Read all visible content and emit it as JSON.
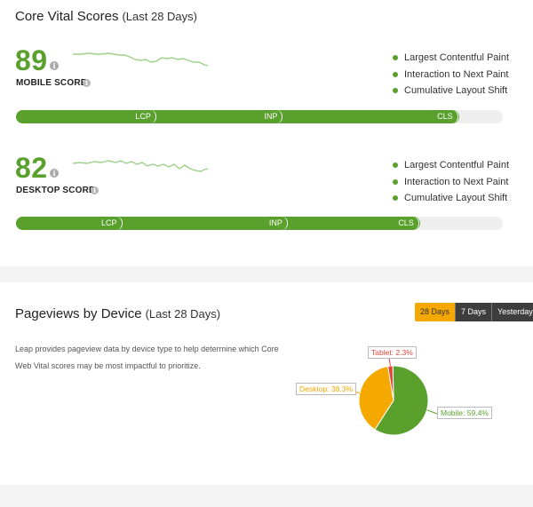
{
  "vitals": {
    "title": "Core Vital Scores",
    "subtitle": "(Last 28 Days)",
    "info_glyph": "i",
    "mobile": {
      "score": "89",
      "label": "MOBILE SCORE",
      "bar": {
        "segments": [
          {
            "label": "LCP",
            "fraction": 0.29
          },
          {
            "label": "INP",
            "fraction": 0.55
          },
          {
            "label": "CLS",
            "fraction": 0.91
          }
        ]
      }
    },
    "desktop": {
      "score": "82",
      "label": "DESKTOP SCORE",
      "bar": {
        "segments": [
          {
            "label": "LCP",
            "fraction": 0.22
          },
          {
            "label": "INP",
            "fraction": 0.56
          },
          {
            "label": "CLS",
            "fraction": 0.83
          }
        ]
      }
    },
    "legend": [
      "Largest Contentful Paint",
      "Interaction to Next Paint",
      "Cumulative Layout Shift"
    ]
  },
  "pageviews": {
    "title": "Pageviews by Device",
    "subtitle": "(Last 28 Days)",
    "tabs": [
      {
        "label": "28 Days",
        "active": true
      },
      {
        "label": "7 Days",
        "active": false
      },
      {
        "label": "Yesterday",
        "active": false
      }
    ],
    "description": "Leap provides pageview data by device type to help determine which Core Web Vital scores may be most impactful to prioritize."
  },
  "chart_data": {
    "type": "pie",
    "slices": [
      {
        "name": "Mobile",
        "value": 59.4,
        "label": "Mobile: 59.4%",
        "color": "#5aa02c"
      },
      {
        "name": "Desktop",
        "value": 38.3,
        "label": "Desktop: 38.3%",
        "color": "#f5a800"
      },
      {
        "name": "Tablet",
        "value": 2.3,
        "label": "Tablet: 2.3%",
        "color": "#e0463b"
      }
    ]
  },
  "colors": {
    "green": "#5aa02c",
    "orange": "#f5a800",
    "red": "#e0463b",
    "track": "#eeeeee",
    "tab_dark": "#3d3d3d"
  }
}
